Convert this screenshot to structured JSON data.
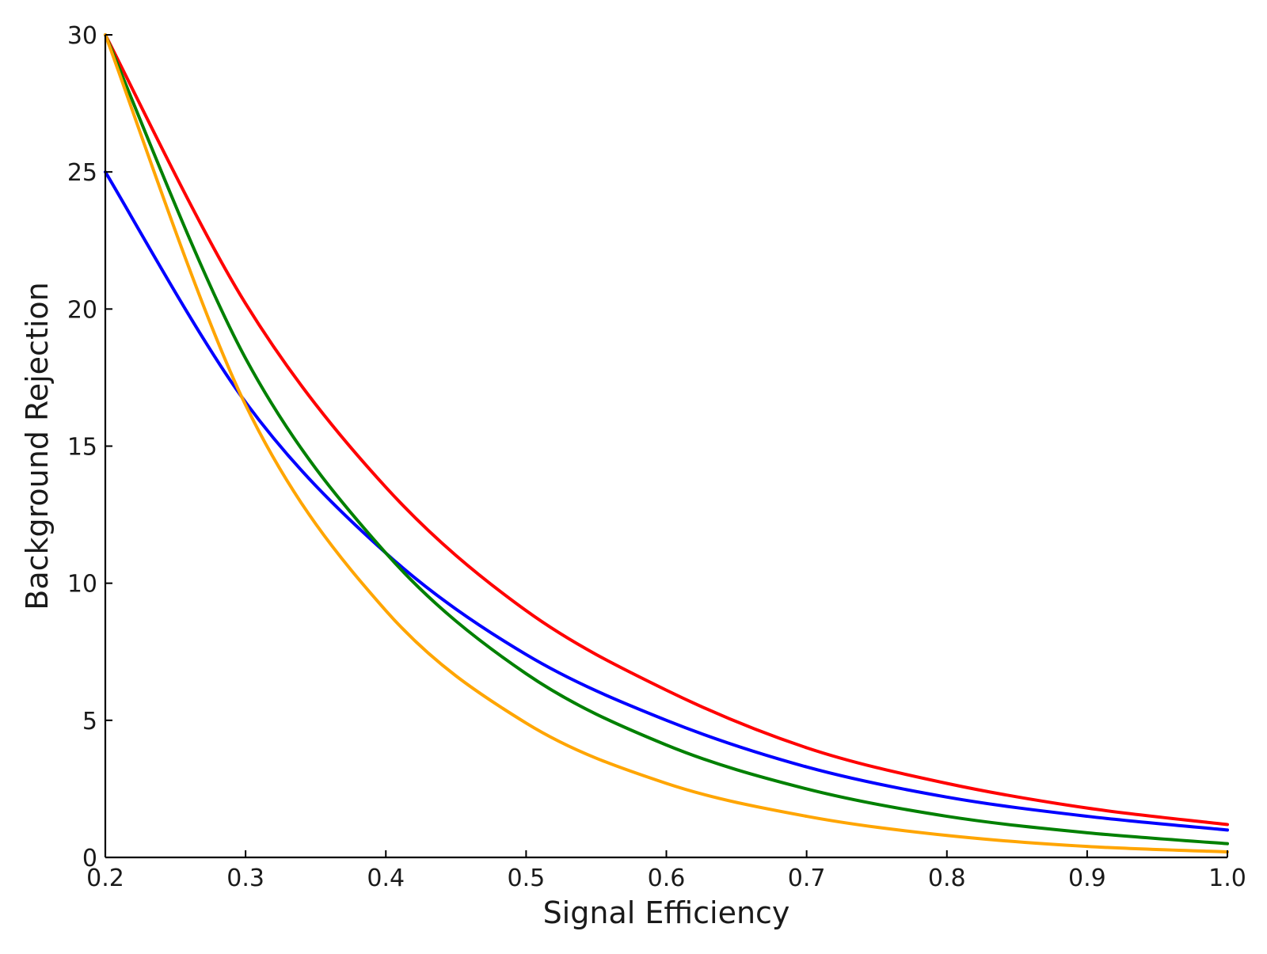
{
  "chart_data": {
    "type": "line",
    "title": "",
    "xlabel": "Signal Efficiency",
    "ylabel": "Background Rejection",
    "xlim": [
      0.2,
      1.0
    ],
    "ylim": [
      0,
      30
    ],
    "xticks": [
      0.2,
      0.3,
      0.4,
      0.5,
      0.6,
      0.7,
      0.8,
      0.9,
      1.0
    ],
    "xtick_labels": [
      "0.2",
      "0.3",
      "0.4",
      "0.5",
      "0.6",
      "0.7",
      "0.8",
      "0.9",
      "1.0"
    ],
    "yticks": [
      0,
      5,
      10,
      15,
      20,
      25,
      30
    ],
    "ytick_labels": [
      "0",
      "5",
      "10",
      "15",
      "20",
      "25",
      "30"
    ],
    "grid": false,
    "legend": "none",
    "x": [
      0.2,
      0.3,
      0.4,
      0.5,
      0.6,
      0.7,
      0.8,
      0.9,
      1.0
    ],
    "series": [
      {
        "color": "#ff0000",
        "values": [
          30.0,
          20.2,
          13.5,
          9.0,
          6.1,
          4.0,
          2.7,
          1.8,
          1.2
        ]
      },
      {
        "color": "#0000ff",
        "values": [
          25.0,
          16.6,
          11.1,
          7.4,
          5.0,
          3.3,
          2.2,
          1.5,
          1.0
        ]
      },
      {
        "color": "#008000",
        "values": [
          30.0,
          18.2,
          11.1,
          6.7,
          4.1,
          2.5,
          1.5,
          0.9,
          0.5
        ]
      },
      {
        "color": "#ffa500",
        "values": [
          30.0,
          16.5,
          9.0,
          4.9,
          2.7,
          1.5,
          0.8,
          0.4,
          0.2
        ]
      }
    ]
  }
}
